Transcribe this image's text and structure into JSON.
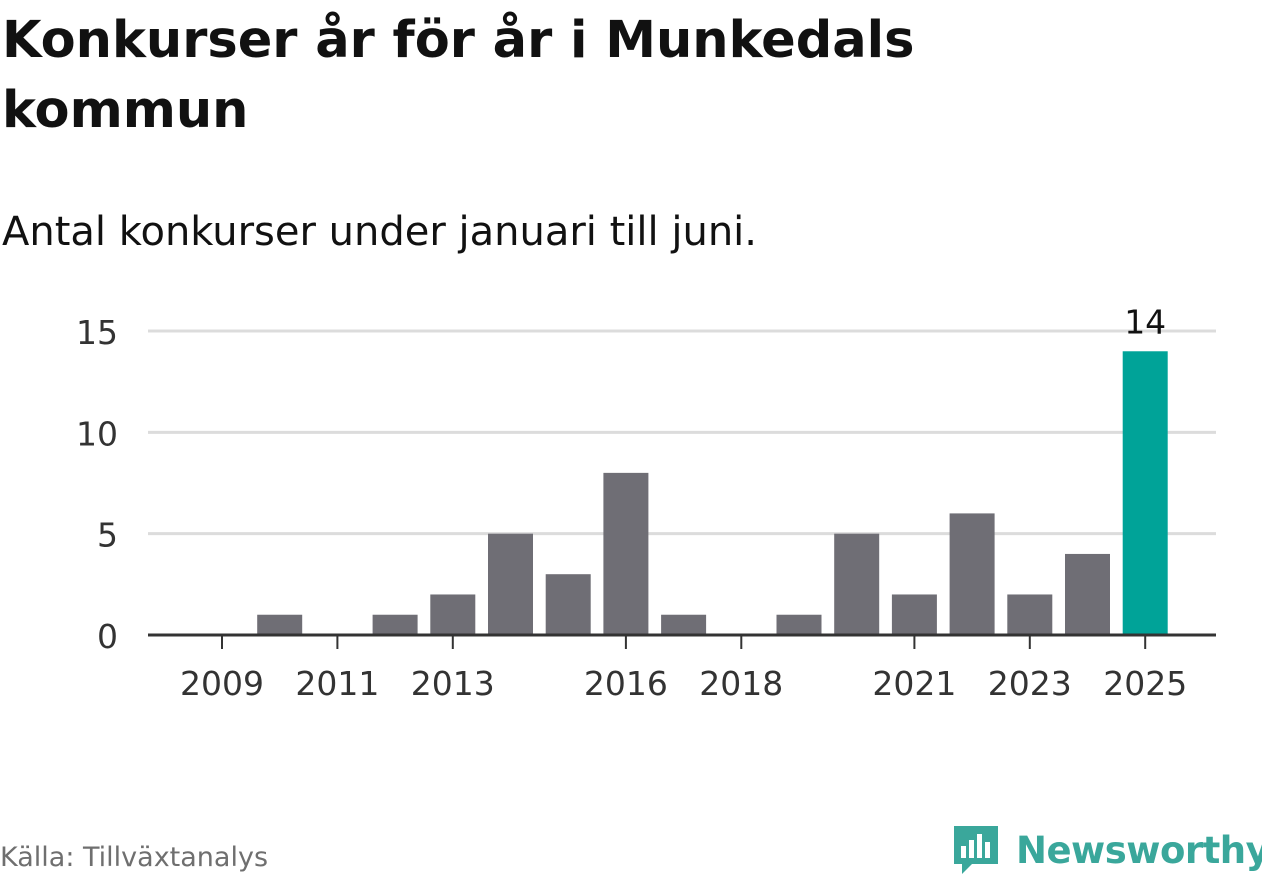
{
  "header": {
    "title": "Konkurser år för år i Munkedals kommun",
    "subtitle": "Antal konkurser under januari till juni."
  },
  "footer": {
    "source": "Källa: Tillväxtanalys",
    "brand": "Newsworthy",
    "brand_icon": "newsworthy-logo-icon"
  },
  "chart_data": {
    "type": "bar",
    "categories": [
      "2009",
      "2010",
      "2011",
      "2012",
      "2013",
      "2014",
      "2015",
      "2016",
      "2017",
      "2018",
      "2019",
      "2020",
      "2021",
      "2022",
      "2023",
      "2024",
      "2025"
    ],
    "values": [
      0,
      1,
      0,
      1,
      2,
      5,
      3,
      8,
      1,
      0,
      1,
      5,
      2,
      6,
      2,
      4,
      14
    ],
    "x_tick_labels": [
      "2009",
      "2011",
      "2013",
      "2016",
      "2018",
      "2021",
      "2023",
      "2025"
    ],
    "y_ticks": [
      0,
      5,
      10,
      15
    ],
    "ylim": [
      0,
      15
    ],
    "grid": true,
    "highlight": {
      "category": "2025",
      "label": "14"
    },
    "colors": {
      "bar": "#6f6e75",
      "highlight": "#00a398",
      "grid": "#dcdcdc",
      "axis": "#333333"
    }
  }
}
